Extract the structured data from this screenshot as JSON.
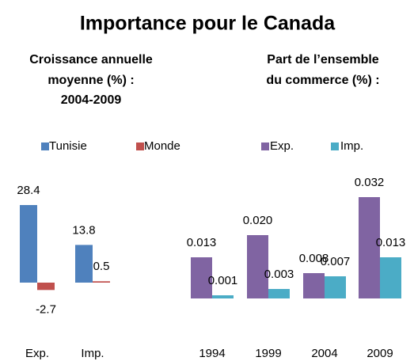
{
  "title": "Importance pour le Canada",
  "chart_data": [
    {
      "type": "bar",
      "subtitle": [
        "Croissance annuelle",
        "moyenne (%) :",
        "2004-2009"
      ],
      "categories": [
        "Exp.",
        "Imp."
      ],
      "series": [
        {
          "name": "Tunisie",
          "color": "#4f81bd",
          "values": [
            28.4,
            13.8
          ]
        },
        {
          "name": "Monde",
          "color": "#c0504d",
          "values": [
            -2.7,
            0.5
          ]
        }
      ]
    },
    {
      "type": "bar",
      "subtitle": [
        "Part de l’ensemble",
        "du commerce (%) :"
      ],
      "categories": [
        "1994",
        "1999",
        "2004",
        "2009"
      ],
      "series": [
        {
          "name": "Exp.",
          "color": "#8064a2",
          "values": [
            0.013,
            0.02,
            0.008,
            0.032
          ],
          "value_labels": [
            "0.013",
            "0.020",
            "0.008",
            "0.032"
          ]
        },
        {
          "name": "Imp.",
          "color": "#4bacc6",
          "values": [
            0.001,
            0.003,
            0.007,
            0.013
          ],
          "value_labels": [
            "0.001",
            "0.003",
            "0.007",
            "0.013"
          ]
        }
      ]
    }
  ]
}
